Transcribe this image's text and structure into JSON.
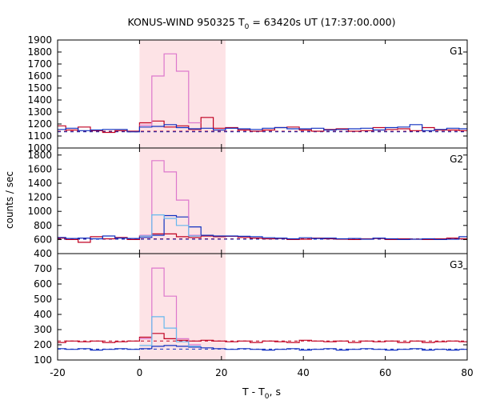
{
  "colors": {
    "red": "#c00020",
    "pink": "#dd77cc",
    "blue": "#1030c0",
    "lightblue": "#66b8ee",
    "shade": "#fde3e6"
  },
  "chart_data": {
    "type": "line",
    "title": {
      "main": "KONUS-WIND 950325 T",
      "sub": "0",
      "rest": " = 63420s UT (17:37:00.000)"
    },
    "xlabel": {
      "main": "T - T",
      "sub": "0",
      "rest": ", s"
    },
    "ylabel": "counts / sec",
    "xlim": [
      -20,
      80
    ],
    "xticks": [
      -20,
      0,
      20,
      40,
      60,
      80
    ],
    "shaded_interval": [
      0,
      21
    ],
    "panels": [
      {
        "name": "G1",
        "ylim": [
          1000,
          1900
        ],
        "yticks": [
          1000,
          1100,
          1200,
          1300,
          1400,
          1500,
          1600,
          1700,
          1800,
          1900
        ],
        "background_levels": {
          "red": 1140,
          "blue": 1135
        },
        "series": [
          {
            "color": "red",
            "edges": [
              -20,
              -18,
              -15,
              -12,
              -9,
              -6,
              -3,
              0,
              3,
              6,
              9,
              12,
              15,
              18,
              21,
              24,
              27,
              30,
              33,
              36,
              39,
              42,
              45,
              48,
              51,
              54,
              57,
              60,
              63,
              66,
              69,
              72,
              75,
              78,
              80
            ],
            "values": [
              1185,
              1150,
              1175,
              1145,
              1130,
              1145,
              1140,
              1210,
              1225,
              1175,
              1185,
              1155,
              1255,
              1165,
              1170,
              1150,
              1140,
              1150,
              1170,
              1175,
              1150,
              1140,
              1155,
              1160,
              1140,
              1145,
              1170,
              1155,
              1160,
              1145,
              1170,
              1150,
              1150,
              1145
            ]
          },
          {
            "color": "blue",
            "edges": [
              -20,
              -18,
              -15,
              -12,
              -9,
              -6,
              -3,
              0,
              3,
              6,
              9,
              12,
              15,
              18,
              21,
              24,
              27,
              30,
              33,
              36,
              39,
              42,
              45,
              48,
              51,
              54,
              57,
              60,
              63,
              66,
              69,
              72,
              75,
              78,
              80
            ],
            "values": [
              1155,
              1165,
              1145,
              1150,
              1155,
              1155,
              1135,
              1175,
              1180,
              1195,
              1170,
              1160,
              1165,
              1150,
              1165,
              1160,
              1155,
              1165,
              1170,
              1160,
              1160,
              1165,
              1150,
              1155,
              1160,
              1165,
              1150,
              1170,
              1175,
              1195,
              1145,
              1155,
              1165,
              1160
            ]
          },
          {
            "color": "pink",
            "edges": [
              0,
              3,
              6,
              9,
              12,
              15
            ],
            "values": [
              1190,
              1600,
              1785,
              1640,
              1210
            ]
          }
        ]
      },
      {
        "name": "G2",
        "ylim": [
          400,
          1900
        ],
        "yticks": [
          400,
          600,
          800,
          1000,
          1200,
          1400,
          1600,
          1800
        ],
        "background_levels": {
          "red": 610,
          "blue": 605
        },
        "series": [
          {
            "color": "red",
            "edges": [
              -20,
              -18,
              -15,
              -12,
              -9,
              -6,
              -3,
              0,
              3,
              6,
              9,
              12,
              15,
              18,
              21,
              24,
              27,
              30,
              33,
              36,
              39,
              42,
              45,
              48,
              51,
              54,
              57,
              60,
              63,
              66,
              69,
              72,
              75,
              78,
              80
            ],
            "values": [
              620,
              600,
              560,
              640,
              610,
              630,
              600,
              650,
              680,
              680,
              640,
              630,
              650,
              640,
              645,
              630,
              620,
              610,
              615,
              600,
              605,
              620,
              610,
              605,
              600,
              610,
              615,
              600,
              610,
              605,
              600,
              610,
              620,
              610
            ]
          },
          {
            "color": "blue",
            "edges": [
              -20,
              -18,
              -15,
              -12,
              -9,
              -6,
              -3,
              0,
              3,
              6,
              9,
              12,
              15,
              18,
              21,
              24,
              27,
              30,
              33,
              36,
              39,
              42,
              45,
              48,
              51,
              54,
              57,
              60,
              63,
              66,
              69,
              72,
              75,
              78,
              80
            ],
            "values": [
              630,
              615,
              620,
              610,
              650,
              620,
              615,
              630,
              660,
              940,
              920,
              780,
              660,
              650,
              650,
              645,
              640,
              625,
              620,
              610,
              625,
              615,
              620,
              610,
              615,
              605,
              620,
              610,
              600,
              605,
              610,
              600,
              605,
              640
            ]
          },
          {
            "color": "pink",
            "edges": [
              0,
              3,
              6,
              9,
              12,
              15
            ],
            "values": [
              660,
              1720,
              1560,
              1160,
              660
            ]
          },
          {
            "color": "lightblue",
            "edges": [
              0,
              3,
              6,
              9,
              12,
              15
            ],
            "values": [
              650,
              950,
              900,
              800,
              650
            ]
          }
        ]
      },
      {
        "name": "G3",
        "ylim": [
          100,
          800
        ],
        "yticks": [
          100,
          200,
          300,
          400,
          500,
          600,
          700
        ],
        "background_levels": {
          "red": 225,
          "blue": 172
        },
        "series": [
          {
            "color": "red",
            "edges": [
              -20,
              -18,
              -15,
              -12,
              -9,
              -6,
              -3,
              0,
              3,
              6,
              9,
              12,
              15,
              18,
              21,
              24,
              27,
              30,
              33,
              36,
              39,
              42,
              45,
              48,
              51,
              54,
              57,
              60,
              63,
              66,
              69,
              72,
              75,
              78,
              80
            ],
            "values": [
              215,
              225,
              220,
              225,
              215,
              220,
              225,
              250,
              275,
              240,
              230,
              225,
              230,
              225,
              220,
              225,
              215,
              225,
              220,
              215,
              230,
              225,
              220,
              225,
              215,
              225,
              220,
              225,
              215,
              225,
              215,
              220,
              225,
              220
            ]
          },
          {
            "color": "blue",
            "edges": [
              -20,
              -18,
              -15,
              -12,
              -9,
              -6,
              -3,
              0,
              3,
              6,
              9,
              12,
              15,
              18,
              21,
              24,
              27,
              30,
              33,
              36,
              39,
              42,
              45,
              48,
              51,
              54,
              57,
              60,
              63,
              66,
              69,
              72,
              75,
              78,
              80
            ],
            "values": [
              175,
              170,
              175,
              165,
              170,
              175,
              170,
              175,
              190,
              195,
              190,
              185,
              180,
              175,
              170,
              175,
              170,
              165,
              170,
              175,
              165,
              170,
              175,
              165,
              170,
              175,
              170,
              165,
              170,
              175,
              165,
              170,
              165,
              170
            ]
          },
          {
            "color": "pink",
            "edges": [
              0,
              3,
              6,
              9,
              12,
              15
            ],
            "values": [
              240,
              705,
              520,
              240,
              200
            ]
          },
          {
            "color": "lightblue",
            "edges": [
              0,
              3,
              6,
              9,
              12,
              15
            ],
            "values": [
              195,
              385,
              310,
              220,
              190
            ]
          }
        ]
      }
    ]
  }
}
